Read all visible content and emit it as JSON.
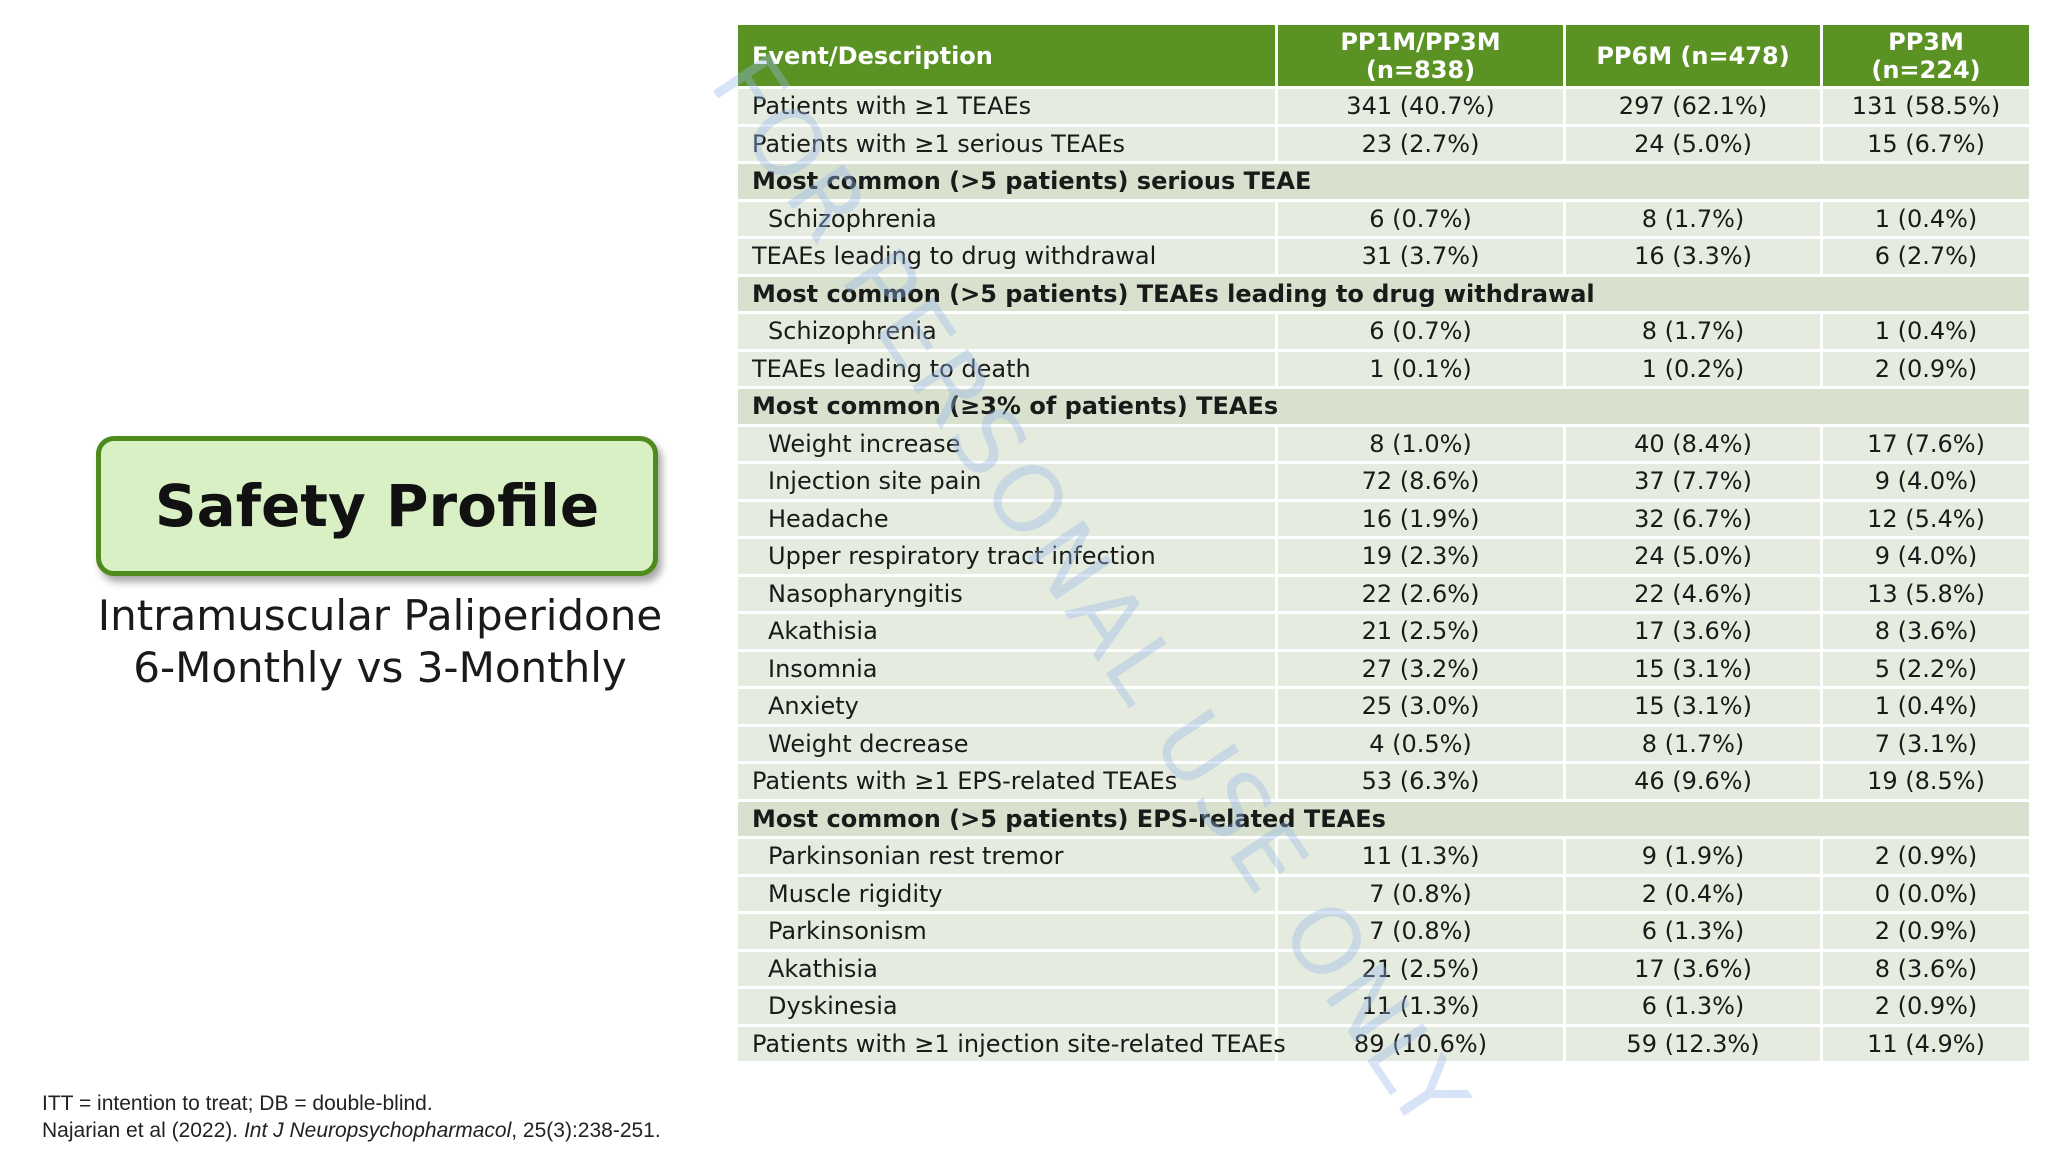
{
  "title": "Safety Profile",
  "subtitle": [
    "Intramuscular Paliperidone",
    "6-Monthly vs 3-Monthly"
  ],
  "watermark": "FOR PERSONAL USE ONLY",
  "footnote": {
    "line1": "ITT = intention to treat; DB = double-blind.",
    "citation_prefix": "Najarian et al (2022). ",
    "journal": "Int J Neuropsychopharmacol",
    "citation_suffix": ", 25(3):238-251."
  },
  "colors": {
    "header_green": "#5a9323",
    "row_bg": "#e5ecdf",
    "section_bg": "#d7e1cd",
    "title_box_bg": "#d8f0c4",
    "title_box_border": "#4f8a1d"
  },
  "table": {
    "headers": [
      "Event/Description",
      "PP1M/PP3M (n=838)",
      "PP6M (n=478)",
      "PP3M (n=224)"
    ],
    "rows": [
      {
        "type": "data",
        "label": "Patients with ≥1 TEAEs",
        "values": [
          "341 (40.7%)",
          "297 (62.1%)",
          "131 (58.5%)"
        ]
      },
      {
        "type": "data",
        "label": "Patients with ≥1 serious TEAEs",
        "values": [
          "23 (2.7%)",
          "24 (5.0%)",
          "15 (6.7%)"
        ]
      },
      {
        "type": "section",
        "label": "Most common (>5 patients) serious TEAE"
      },
      {
        "type": "data",
        "indent": true,
        "label": "Schizophrenia",
        "values": [
          "6 (0.7%)",
          "8 (1.7%)",
          "1 (0.4%)"
        ]
      },
      {
        "type": "data",
        "label": "TEAEs leading to drug withdrawal",
        "values": [
          "31 (3.7%)",
          "16 (3.3%)",
          "6 (2.7%)"
        ]
      },
      {
        "type": "section",
        "label": "Most common (>5 patients) TEAEs leading to drug withdrawal"
      },
      {
        "type": "data",
        "indent": true,
        "label": "Schizophrenia",
        "values": [
          "6 (0.7%)",
          "8 (1.7%)",
          "1 (0.4%)"
        ]
      },
      {
        "type": "data",
        "label": "TEAEs leading to death",
        "values": [
          "1 (0.1%)",
          "1 (0.2%)",
          "2 (0.9%)"
        ]
      },
      {
        "type": "section",
        "label": "Most common (≥3% of patients) TEAEs"
      },
      {
        "type": "data",
        "indent": true,
        "label": "Weight increase",
        "values": [
          "8 (1.0%)",
          "40 (8.4%)",
          "17 (7.6%)"
        ]
      },
      {
        "type": "data",
        "indent": true,
        "label": "Injection site pain",
        "values": [
          "72 (8.6%)",
          "37 (7.7%)",
          "9 (4.0%)"
        ]
      },
      {
        "type": "data",
        "indent": true,
        "label": "Headache",
        "values": [
          "16 (1.9%)",
          "32 (6.7%)",
          "12 (5.4%)"
        ]
      },
      {
        "type": "data",
        "indent": true,
        "label": "Upper respiratory tract infection",
        "values": [
          "19 (2.3%)",
          "24 (5.0%)",
          "9 (4.0%)"
        ]
      },
      {
        "type": "data",
        "indent": true,
        "label": "Nasopharyngitis",
        "values": [
          "22 (2.6%)",
          "22 (4.6%)",
          "13 (5.8%)"
        ]
      },
      {
        "type": "data",
        "indent": true,
        "label": "Akathisia",
        "values": [
          "21 (2.5%)",
          "17 (3.6%)",
          "8 (3.6%)"
        ]
      },
      {
        "type": "data",
        "indent": true,
        "label": "Insomnia",
        "values": [
          "27 (3.2%)",
          "15 (3.1%)",
          "5 (2.2%)"
        ]
      },
      {
        "type": "data",
        "indent": true,
        "label": "Anxiety",
        "values": [
          "25 (3.0%)",
          "15 (3.1%)",
          "1 (0.4%)"
        ]
      },
      {
        "type": "data",
        "indent": true,
        "label": "Weight decrease",
        "values": [
          "4 (0.5%)",
          "8 (1.7%)",
          "7 (3.1%)"
        ]
      },
      {
        "type": "data",
        "label": "Patients with ≥1 EPS-related TEAEs",
        "values": [
          "53 (6.3%)",
          "46 (9.6%)",
          "19 (8.5%)"
        ]
      },
      {
        "type": "section",
        "label": "Most common (>5 patients) EPS-related TEAEs"
      },
      {
        "type": "data",
        "indent": true,
        "label": "Parkinsonian rest tremor",
        "values": [
          "11 (1.3%)",
          "9 (1.9%)",
          "2 (0.9%)"
        ]
      },
      {
        "type": "data",
        "indent": true,
        "label": "Muscle rigidity",
        "values": [
          "7 (0.8%)",
          "2 (0.4%)",
          "0 (0.0%)"
        ]
      },
      {
        "type": "data",
        "indent": true,
        "label": "Parkinsonism",
        "values": [
          "7 (0.8%)",
          "6 (1.3%)",
          "2 (0.9%)"
        ]
      },
      {
        "type": "data",
        "indent": true,
        "label": "Akathisia",
        "values": [
          "21 (2.5%)",
          "17 (3.6%)",
          "8 (3.6%)"
        ]
      },
      {
        "type": "data",
        "indent": true,
        "label": "Dyskinesia",
        "values": [
          "11 (1.3%)",
          "6 (1.3%)",
          "2 (0.9%)"
        ]
      },
      {
        "type": "data",
        "label": "Patients with ≥1 injection site-related TEAEs",
        "values": [
          "89 (10.6%)",
          "59 (12.3%)",
          "11 (4.9%)"
        ]
      }
    ]
  }
}
